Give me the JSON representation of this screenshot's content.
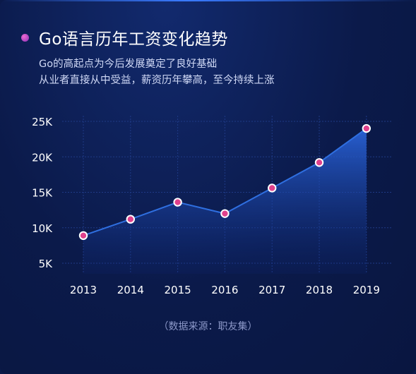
{
  "header": {
    "title": "Go语言历年工资变化趋势",
    "subtitle_line1": "Go的高起点为今后发展奠定了良好基础",
    "subtitle_line2": "从业者直接从中受益，薪资历年攀高，至今持续上涨"
  },
  "source": "（数据来源：职友集）",
  "colors": {
    "background": "#0b1a4a",
    "line": "#2f6fe0",
    "marker_fill": "#e0418c",
    "marker_stroke": "#ffffff",
    "tick_text": "#ffffff"
  },
  "chart_data": {
    "type": "area",
    "categories": [
      "2013",
      "2014",
      "2015",
      "2016",
      "2017",
      "2018",
      "2019"
    ],
    "series": [
      {
        "values": [
          8900,
          11200,
          13600,
          12000,
          15600,
          19200,
          24000
        ]
      }
    ],
    "yticks": [
      "5K",
      "10K",
      "15K",
      "20K",
      "25K"
    ],
    "ytick_values": [
      5000,
      10000,
      15000,
      20000,
      25000
    ],
    "ylim": [
      5000,
      25000
    ],
    "grid": true,
    "legend": "none"
  }
}
